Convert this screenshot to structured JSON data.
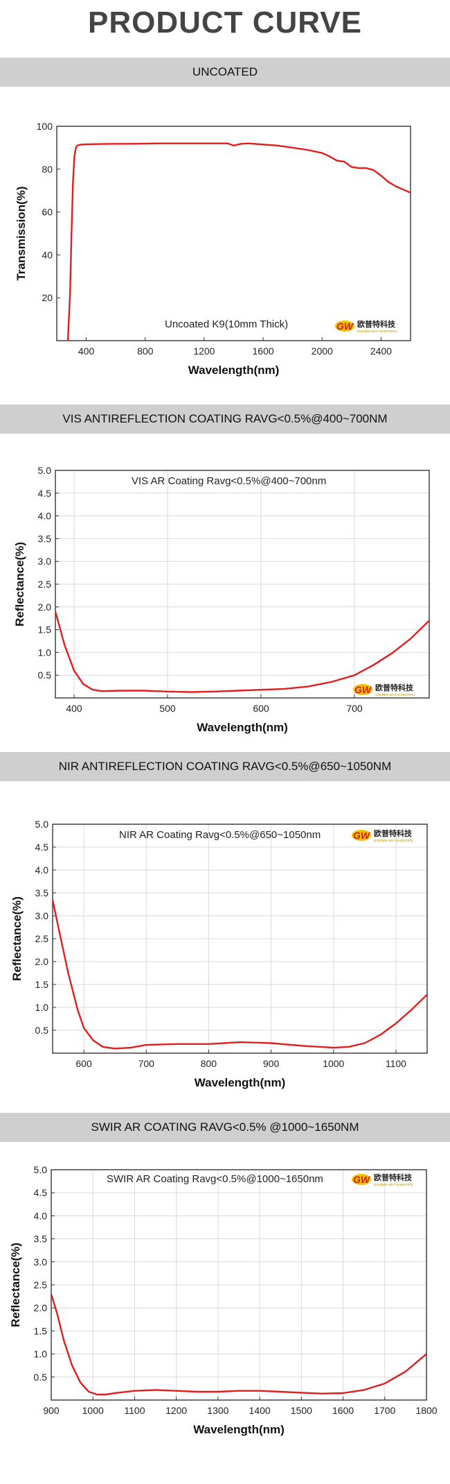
{
  "page": {
    "title": "PRODUCT CURVE"
  },
  "logo": {
    "mark": "GW",
    "cn": "欧普特科技",
    "en": "GOLDEN WAY SCIENTIFIC"
  },
  "sections": [
    {
      "band": "UNCOATED"
    },
    {
      "band": "VIS ANTIREFLECTION COATING RAVG<0.5%@400~700NM"
    },
    {
      "band": "NIR ANTIREFLECTION COATING RAVG<0.5%@650~1050NM"
    },
    {
      "band": "SWIR AR COATING RAVG<0.5% @1000~1650NM"
    }
  ],
  "colors": {
    "curve": "#e11d1d",
    "band": "#cfcfcf",
    "grid": "#d9d9d9"
  },
  "chart_data": [
    {
      "type": "line",
      "annotation": "Uncoated K9(10mm Thick)",
      "xlabel": "Wavelength(nm)",
      "ylabel": "Transmission(%)",
      "xlim": [
        200,
        2600
      ],
      "ylim": [
        0,
        100
      ],
      "xticks": [
        400,
        800,
        1200,
        1600,
        2000,
        2400
      ],
      "yticks": [
        20,
        40,
        60,
        80,
        100
      ],
      "grid": false,
      "x": [
        275,
        290,
        300,
        310,
        320,
        330,
        340,
        350,
        370,
        400,
        500,
        600,
        700,
        800,
        900,
        1000,
        1100,
        1200,
        1300,
        1360,
        1380,
        1400,
        1450,
        1500,
        1600,
        1700,
        1800,
        1900,
        2000,
        2050,
        2100,
        2150,
        2200,
        2250,
        2300,
        2350,
        2400,
        2450,
        2500,
        2550,
        2600
      ],
      "y": [
        0,
        22,
        50,
        74,
        86,
        90,
        91,
        91.3,
        91.5,
        91.6,
        91.7,
        91.8,
        91.8,
        91.9,
        92,
        92,
        92,
        92,
        92,
        92,
        91.5,
        91,
        91.8,
        92,
        91.5,
        91,
        90,
        89,
        87.5,
        86,
        84,
        83.5,
        81,
        80.5,
        80.5,
        79.5,
        77,
        74,
        72,
        70.5,
        69
      ]
    },
    {
      "type": "line",
      "annotation": "VIS AR Coating Ravg<0.5%@400~700nm",
      "xlabel": "Wavelength(nm)",
      "ylabel": "Reflectance(%)",
      "xlim": [
        380,
        780
      ],
      "ylim": [
        0,
        5
      ],
      "xticks": [
        400,
        500,
        600,
        700
      ],
      "yticks": [
        0.5,
        1.0,
        1.5,
        2.0,
        2.5,
        3.0,
        3.5,
        4.0,
        4.5,
        5.0
      ],
      "ytick_labels": [
        "0.5",
        "1.0",
        "1.5",
        "2.0",
        "2.5",
        "3.0",
        "3.5",
        "4.0",
        "4.5",
        "5.0"
      ],
      "grid": true,
      "x": [
        380,
        390,
        400,
        410,
        420,
        430,
        450,
        475,
        500,
        525,
        550,
        575,
        600,
        625,
        650,
        675,
        700,
        720,
        740,
        760,
        780
      ],
      "y": [
        1.9,
        1.15,
        0.6,
        0.3,
        0.18,
        0.15,
        0.16,
        0.16,
        0.14,
        0.13,
        0.14,
        0.16,
        0.18,
        0.2,
        0.25,
        0.35,
        0.5,
        0.72,
        0.98,
        1.3,
        1.7
      ]
    },
    {
      "type": "line",
      "annotation": "NIR AR Coating Ravg<0.5%@650~1050nm",
      "xlabel": "Wavelength(nm)",
      "ylabel": "Reflectance(%)",
      "xlim": [
        550,
        1150
      ],
      "ylim": [
        0,
        5
      ],
      "xticks": [
        600,
        700,
        800,
        900,
        1000,
        1100
      ],
      "yticks": [
        0.5,
        1.0,
        1.5,
        2.0,
        2.5,
        3.0,
        3.5,
        4.0,
        4.5,
        5.0
      ],
      "ytick_labels": [
        "0.5",
        "1.0",
        "1.5",
        "2.0",
        "2.5",
        "3.0",
        "3.5",
        "4.0",
        "4.5",
        "5.0"
      ],
      "grid": true,
      "x": [
        550,
        560,
        575,
        590,
        600,
        615,
        630,
        650,
        675,
        700,
        750,
        800,
        850,
        900,
        950,
        1000,
        1025,
        1050,
        1075,
        1100,
        1125,
        1150
      ],
      "y": [
        3.35,
        2.7,
        1.75,
        0.95,
        0.55,
        0.28,
        0.14,
        0.1,
        0.12,
        0.18,
        0.2,
        0.2,
        0.24,
        0.22,
        0.16,
        0.12,
        0.14,
        0.22,
        0.4,
        0.65,
        0.95,
        1.28
      ]
    },
    {
      "type": "line",
      "annotation": "SWIR AR Coating Ravg<0.5%@1000~1650nm",
      "xlabel": "Wavelength(nm)",
      "ylabel": "Reflectance(%)",
      "xlim": [
        900,
        1800
      ],
      "ylim": [
        0,
        5
      ],
      "xticks": [
        900,
        1000,
        1100,
        1200,
        1300,
        1400,
        1500,
        1600,
        1700,
        1800
      ],
      "yticks": [
        0.5,
        1.0,
        1.5,
        2.0,
        2.5,
        3.0,
        3.5,
        4.0,
        4.5,
        5.0
      ],
      "ytick_labels": [
        "0.5",
        "1.0",
        "1.5",
        "2.0",
        "2.5",
        "3.0",
        "3.5",
        "4.0",
        "4.5",
        "5.0"
      ],
      "grid": true,
      "x": [
        900,
        915,
        930,
        950,
        970,
        990,
        1010,
        1030,
        1060,
        1100,
        1150,
        1200,
        1250,
        1300,
        1350,
        1400,
        1450,
        1500,
        1550,
        1600,
        1650,
        1700,
        1750,
        1800
      ],
      "y": [
        2.3,
        1.85,
        1.3,
        0.75,
        0.38,
        0.18,
        0.12,
        0.12,
        0.16,
        0.2,
        0.22,
        0.2,
        0.18,
        0.18,
        0.2,
        0.2,
        0.18,
        0.16,
        0.14,
        0.15,
        0.22,
        0.36,
        0.62,
        1.0
      ]
    }
  ]
}
